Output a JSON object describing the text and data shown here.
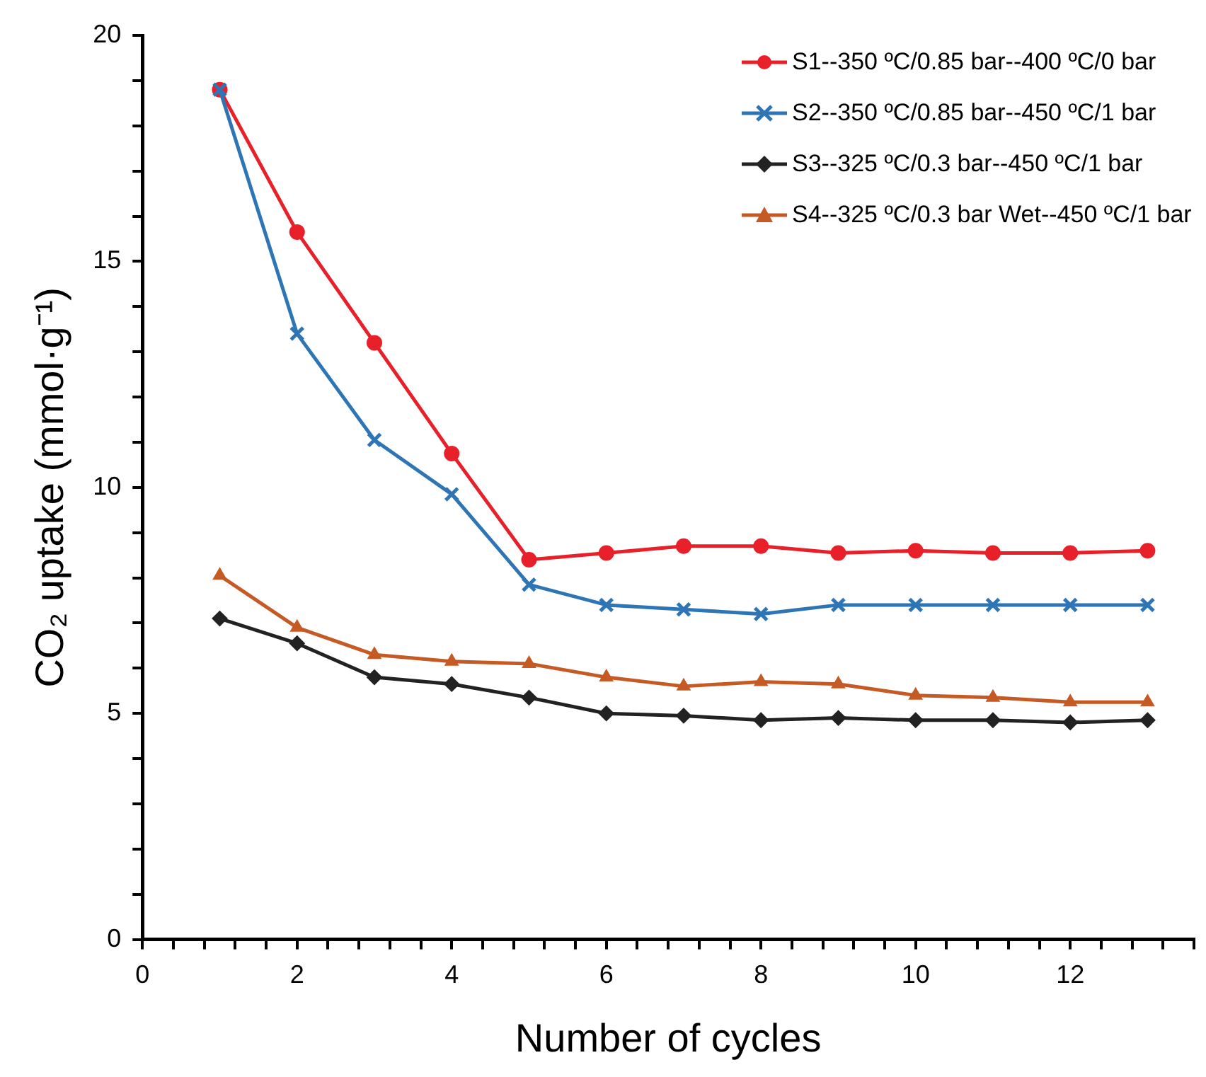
{
  "chart_data": {
    "type": "line",
    "xlabel": "Number of cycles",
    "ylabel": "CO₂ uptake (mmol·g⁻¹)",
    "x": [
      1,
      2,
      3,
      4,
      5,
      6,
      7,
      8,
      9,
      10,
      11,
      12,
      13
    ],
    "series": [
      {
        "name": "S1--350 ºC/0.85 bar--400 ºC/0 bar",
        "color": "#e8202a",
        "marker": "circle",
        "values": [
          18.8,
          15.65,
          13.2,
          10.75,
          8.4,
          8.55,
          8.7,
          8.7,
          8.55,
          8.6,
          8.55,
          8.55,
          8.6
        ]
      },
      {
        "name": "S2--350 ºC/0.85 bar--450 ºC/1 bar",
        "color": "#2e75b6",
        "marker": "cross",
        "values": [
          18.8,
          13.4,
          11.05,
          9.85,
          7.85,
          7.4,
          7.3,
          7.2,
          7.4,
          7.4,
          7.4,
          7.4,
          7.4
        ]
      },
      {
        "name": "S3--325 ºC/0.3 bar--450 ºC/1 bar",
        "color": "#222222",
        "marker": "diamond",
        "values": [
          7.1,
          6.55,
          5.8,
          5.65,
          5.35,
          5.0,
          4.95,
          4.85,
          4.9,
          4.85,
          4.85,
          4.8,
          4.85
        ]
      },
      {
        "name": "S4--325 ºC/0.3 bar Wet--450 ºC/1 bar",
        "color": "#c55a24",
        "marker": "triangle",
        "values": [
          8.05,
          6.9,
          6.3,
          6.15,
          6.1,
          5.8,
          5.6,
          5.7,
          5.65,
          5.4,
          5.35,
          5.25,
          5.25
        ]
      }
    ],
    "xlim": [
      0,
      13.6
    ],
    "xticks": [
      0,
      {
        "value": 0.4,
        "label": null
      },
      {
        "value": 0.8,
        "label": null
      },
      {
        "value": 1.2,
        "label": null
      },
      {
        "value": 1.6,
        "label": null
      },
      2,
      {
        "value": 2.4,
        "label": null
      },
      {
        "value": 2.8,
        "label": null
      },
      {
        "value": 3.2,
        "label": null
      },
      {
        "value": 3.6,
        "label": null
      },
      4,
      {
        "value": 4.4,
        "label": null
      },
      {
        "value": 4.8,
        "label": null
      },
      {
        "value": 5.2,
        "label": null
      },
      {
        "value": 5.6,
        "label": null
      },
      6,
      {
        "value": 6.4,
        "label": null
      },
      {
        "value": 6.8,
        "label": null
      },
      {
        "value": 7.2,
        "label": null
      },
      {
        "value": 7.6,
        "label": null
      },
      8,
      {
        "value": 8.4,
        "label": null
      },
      {
        "value": 8.8,
        "label": null
      },
      {
        "value": 9.2,
        "label": null
      },
      {
        "value": 9.6,
        "label": null
      },
      10,
      {
        "value": 10.4,
        "label": null
      },
      {
        "value": 10.8,
        "label": null
      },
      {
        "value": 11.2,
        "label": null
      },
      {
        "value": 11.6,
        "label": null
      },
      12,
      {
        "value": 12.4,
        "label": null
      },
      {
        "value": 12.8,
        "label": null
      },
      {
        "value": 13.2,
        "label": null
      },
      {
        "value": 13.6,
        "label": null
      }
    ],
    "ylim": [
      0,
      20
    ],
    "yticks": [
      0,
      {
        "value": 1,
        "label": null
      },
      {
        "value": 2,
        "label": null
      },
      {
        "value": 3,
        "label": null
      },
      {
        "value": 4,
        "label": null
      },
      5,
      {
        "value": 6,
        "label": null
      },
      {
        "value": 7,
        "label": null
      },
      {
        "value": 8,
        "label": null
      },
      {
        "value": 9,
        "label": null
      },
      10,
      {
        "value": 11,
        "label": null
      },
      {
        "value": 12,
        "label": null
      },
      {
        "value": 13,
        "label": null
      },
      {
        "value": 14,
        "label": null
      },
      15,
      {
        "value": 16,
        "label": null
      },
      {
        "value": 17,
        "label": null
      },
      {
        "value": 18,
        "label": null
      },
      {
        "value": 19,
        "label": null
      },
      20
    ],
    "grid": false,
    "legend": "top right",
    "line_style": "solid"
  }
}
